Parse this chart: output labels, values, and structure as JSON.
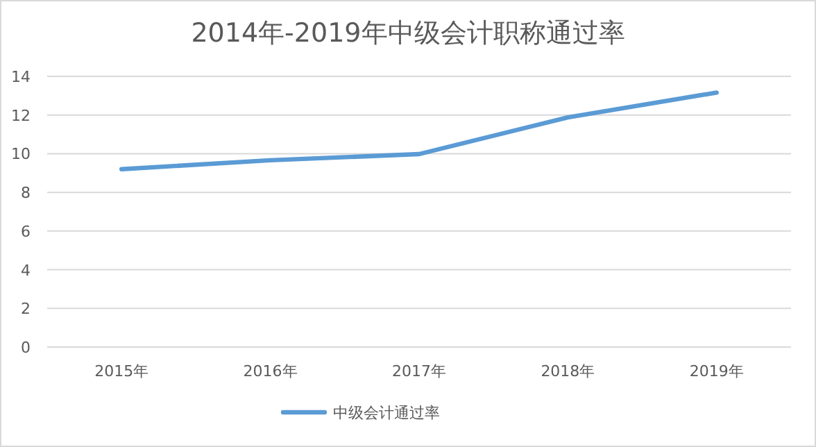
{
  "chart_data": {
    "type": "line",
    "title": "2014年-2019年中级会计职称通过率",
    "categories": [
      "2015年",
      "2016年",
      "2017年",
      "2018年",
      "2019年"
    ],
    "series": [
      {
        "name": "中级会计通过率",
        "color": "#5b9bd5",
        "values": [
          9.2,
          9.66,
          9.98,
          11.88,
          13.16
        ]
      }
    ],
    "ylim": [
      0,
      14
    ],
    "yticks": [
      0,
      2,
      4,
      6,
      8,
      10,
      12,
      14
    ],
    "grid": "y",
    "legend": "bottom",
    "marker": "none"
  }
}
